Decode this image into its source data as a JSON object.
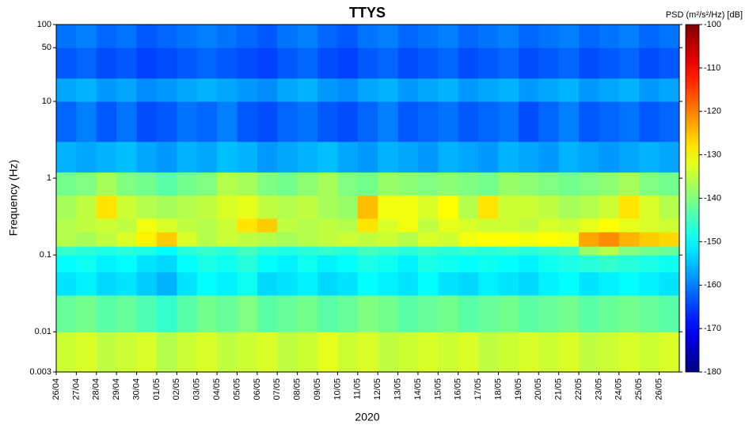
{
  "chart_data": {
    "type": "heatmap",
    "title": "TTYS",
    "x_label": "2020",
    "y_label": "Frequency (Hz)",
    "colorbar_label": "PSD (m²/s²/Hz) [dB]",
    "categories": [
      "26/04",
      "27/04",
      "28/04",
      "29/04",
      "30/04",
      "01/05",
      "02/05",
      "03/05",
      "04/05",
      "05/05",
      "06/05",
      "07/05",
      "08/05",
      "09/05",
      "10/05",
      "11/05",
      "12/05",
      "13/05",
      "14/05",
      "15/05",
      "16/05",
      "17/05",
      "18/05",
      "19/05",
      "20/05",
      "21/05",
      "22/05",
      "23/05",
      "24/05",
      "25/05",
      "26/05"
    ],
    "y_bins": [
      0.003,
      0.01,
      0.03,
      0.06,
      0.1,
      0.13,
      0.2,
      0.3,
      0.6,
      1.2,
      3,
      10,
      20,
      50,
      100
    ],
    "ylim": [
      0.003,
      100
    ],
    "yticks": [
      0.003,
      0.01,
      0.1,
      1,
      10,
      50,
      100
    ],
    "y_log": true,
    "colormap": "jet",
    "clim": [
      -180,
      -100
    ],
    "cticks": [
      -100,
      -110,
      -120,
      -130,
      -140,
      -150,
      -160,
      -170,
      -180
    ],
    "z": [
      [
        -134,
        -133,
        -135,
        -134,
        -133,
        -136,
        -134,
        -133,
        -135,
        -134,
        -133,
        -135,
        -134,
        -132,
        -134,
        -133,
        -135,
        -134,
        -133,
        -134,
        -133,
        -135,
        -134,
        -133,
        -134,
        -133,
        -135,
        -134,
        -133,
        -134,
        -133
      ],
      [
        -142,
        -141,
        -143,
        -142,
        -144,
        -146,
        -143,
        -141,
        -142,
        -140,
        -143,
        -142,
        -141,
        -143,
        -142,
        -140,
        -141,
        -143,
        -142,
        -141,
        -143,
        -142,
        -141,
        -143,
        -142,
        -141,
        -143,
        -142,
        -141,
        -142,
        -143
      ],
      [
        -152,
        -151,
        -153,
        -152,
        -154,
        -156,
        -152,
        -150,
        -151,
        -149,
        -153,
        -152,
        -151,
        -153,
        -152,
        -150,
        -151,
        -152,
        -150,
        -152,
        -153,
        -151,
        -152,
        -153,
        -151,
        -150,
        -152,
        -151,
        -150,
        -151,
        -152
      ],
      [
        -150,
        -149,
        -151,
        -150,
        -152,
        -153,
        -150,
        -148,
        -149,
        -147,
        -150,
        -151,
        -149,
        -151,
        -150,
        -148,
        -149,
        -151,
        -148,
        -149,
        -150,
        -149,
        -150,
        -151,
        -149,
        -148,
        -147,
        -146,
        -147,
        -148,
        -149
      ],
      [
        -146,
        -147,
        -148,
        -147,
        -148,
        -150,
        -147,
        -146,
        -147,
        -145,
        -147,
        -148,
        -147,
        -146,
        -147,
        -145,
        -146,
        -147,
        -146,
        -147,
        -146,
        -147,
        -146,
        -147,
        -146,
        -145,
        -138,
        -136,
        -140,
        -141,
        -142
      ],
      [
        -136,
        -137,
        -135,
        -133,
        -129,
        -126,
        -133,
        -136,
        -134,
        -135,
        -136,
        -137,
        -136,
        -135,
        -134,
        -135,
        -134,
        -136,
        -133,
        -134,
        -131,
        -130,
        -130,
        -131,
        -130,
        -131,
        -123,
        -121,
        -124,
        -126,
        -127
      ],
      [
        -136,
        -135,
        -134,
        -135,
        -131,
        -133,
        -135,
        -136,
        -134,
        -128,
        -126,
        -135,
        -136,
        -135,
        -136,
        -128,
        -133,
        -131,
        -135,
        -132,
        -133,
        -134,
        -134,
        -135,
        -133,
        -134,
        -132,
        -130,
        -132,
        -133,
        -134
      ],
      [
        -137,
        -135,
        -128,
        -134,
        -136,
        -137,
        -136,
        -135,
        -133,
        -132,
        -135,
        -136,
        -135,
        -137,
        -138,
        -125,
        -131,
        -131,
        -133,
        -130,
        -136,
        -128,
        -134,
        -134,
        -135,
        -137,
        -136,
        -134,
        -128,
        -133,
        -136
      ],
      [
        -141,
        -140,
        -137,
        -140,
        -141,
        -143,
        -141,
        -140,
        -136,
        -137,
        -140,
        -141,
        -139,
        -137,
        -140,
        -141,
        -138,
        -139,
        -140,
        -139,
        -140,
        -141,
        -138,
        -139,
        -140,
        -141,
        -140,
        -139,
        -137,
        -140,
        -141
      ],
      [
        -156,
        -157,
        -156,
        -155,
        -157,
        -158,
        -156,
        -157,
        -155,
        -156,
        -158,
        -157,
        -156,
        -155,
        -157,
        -158,
        -156,
        -157,
        -158,
        -156,
        -157,
        -158,
        -156,
        -157,
        -158,
        -156,
        -157,
        -158,
        -157,
        -156,
        -157
      ],
      [
        -162,
        -160,
        -163,
        -161,
        -164,
        -163,
        -161,
        -162,
        -160,
        -163,
        -164,
        -162,
        -161,
        -163,
        -164,
        -162,
        -160,
        -163,
        -162,
        -161,
        -163,
        -162,
        -161,
        -164,
        -162,
        -160,
        -163,
        -162,
        -161,
        -163,
        -162
      ],
      [
        -157,
        -156,
        -158,
        -157,
        -159,
        -158,
        -157,
        -156,
        -157,
        -158,
        -159,
        -157,
        -156,
        -158,
        -159,
        -157,
        -156,
        -158,
        -157,
        -156,
        -158,
        -157,
        -156,
        -158,
        -157,
        -156,
        -158,
        -157,
        -156,
        -158,
        -157
      ],
      [
        -163,
        -162,
        -164,
        -163,
        -165,
        -164,
        -163,
        -162,
        -163,
        -164,
        -165,
        -163,
        -162,
        -164,
        -165,
        -163,
        -162,
        -164,
        -163,
        -162,
        -164,
        -163,
        -162,
        -164,
        -163,
        -162,
        -164,
        -163,
        -162,
        -164,
        -163
      ],
      [
        -161,
        -160,
        -162,
        -161,
        -163,
        -162,
        -161,
        -160,
        -161,
        -162,
        -163,
        -161,
        -160,
        -162,
        -163,
        -161,
        -160,
        -162,
        -161,
        -160,
        -162,
        -161,
        -160,
        -162,
        -161,
        -160,
        -162,
        -161,
        -160,
        -162,
        -161
      ]
    ]
  }
}
